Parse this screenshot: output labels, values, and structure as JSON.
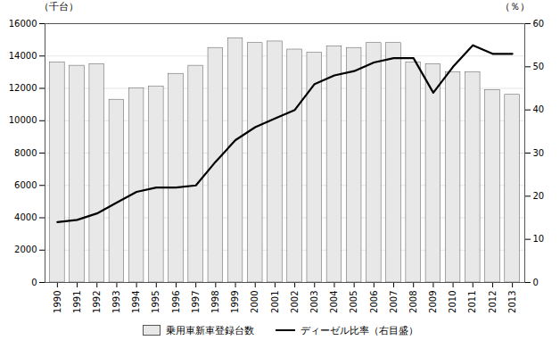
{
  "chart_data": {
    "type": "bar",
    "categories": [
      "1990",
      "1991",
      "1992",
      "1993",
      "1994",
      "1995",
      "1996",
      "1997",
      "1998",
      "1999",
      "2000",
      "2001",
      "2002",
      "2003",
      "2004",
      "2005",
      "2006",
      "2007",
      "2008",
      "2009",
      "2010",
      "2011",
      "2012",
      "2013"
    ],
    "series": [
      {
        "name": "乗用車新車登録台数",
        "type": "bar",
        "color": "#e8e8e8",
        "values": [
          13600,
          13400,
          13500,
          11300,
          12000,
          12100,
          12900,
          13400,
          14500,
          15100,
          14800,
          14900,
          14400,
          14200,
          14600,
          14500,
          14800,
          14800,
          13600,
          13500,
          13000,
          13000,
          11900,
          11600
        ]
      },
      {
        "name": "ディーゼル比率（右目盛）",
        "type": "line",
        "color": "#000000",
        "axis": "y2",
        "values": [
          14,
          14.5,
          16,
          18.5,
          21,
          22,
          22,
          22.5,
          28,
          33,
          36,
          38,
          40,
          46,
          48,
          49,
          51,
          52,
          52,
          44,
          50,
          55,
          53,
          53
        ]
      }
    ],
    "y_label": "（千台）",
    "y2_label": "（％）",
    "ylim": [
      0,
      16000
    ],
    "yticks": [
      0,
      2000,
      4000,
      6000,
      8000,
      10000,
      12000,
      14000,
      16000
    ],
    "y2lim": [
      0,
      60
    ],
    "y2ticks": [
      0,
      10,
      20,
      30,
      40,
      50,
      60
    ],
    "grid": true,
    "legend": "bottom"
  }
}
